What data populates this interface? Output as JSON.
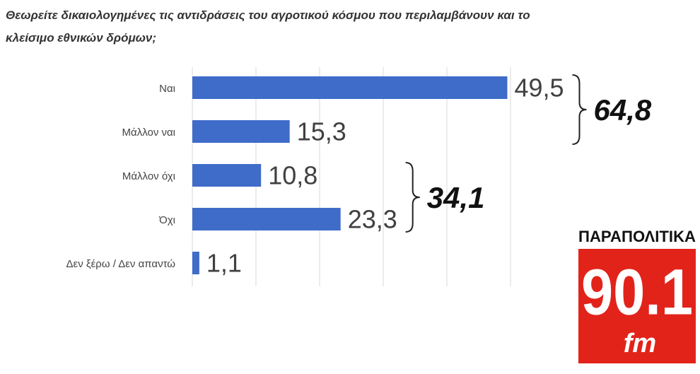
{
  "chart_data": {
    "type": "hbar",
    "title": "Θεωρείτε δικαιολογημένες τις αντιδράσεις του αγροτικού κόσμου που περιλαμβάνουν και το κλείσιμο εθνικών δρόμων;",
    "categories": [
      "Ναι",
      "Μάλλον ναι",
      "Μάλλον όχι",
      "Όχι",
      "Δεν ξέρω / Δεν απαντώ"
    ],
    "values": [
      49.5,
      15.3,
      10.8,
      23.3,
      1.1
    ],
    "value_labels": [
      "49,5",
      "15,3",
      "10,8",
      "23,3",
      "1,1"
    ],
    "color": "#3f6cc9",
    "xlim": [
      0,
      50
    ],
    "xticks": [
      0,
      10,
      20,
      30,
      40,
      50
    ],
    "grid": true,
    "group_totals": {
      "values": [
        64.8,
        34.1
      ],
      "value_labels": [
        "64,8",
        "34,1"
      ]
    }
  },
  "logo": {
    "name": "ΠΑΡΑΠΟΛΙΤΙΚΑ",
    "frequency": "90.1",
    "band": "fm"
  }
}
